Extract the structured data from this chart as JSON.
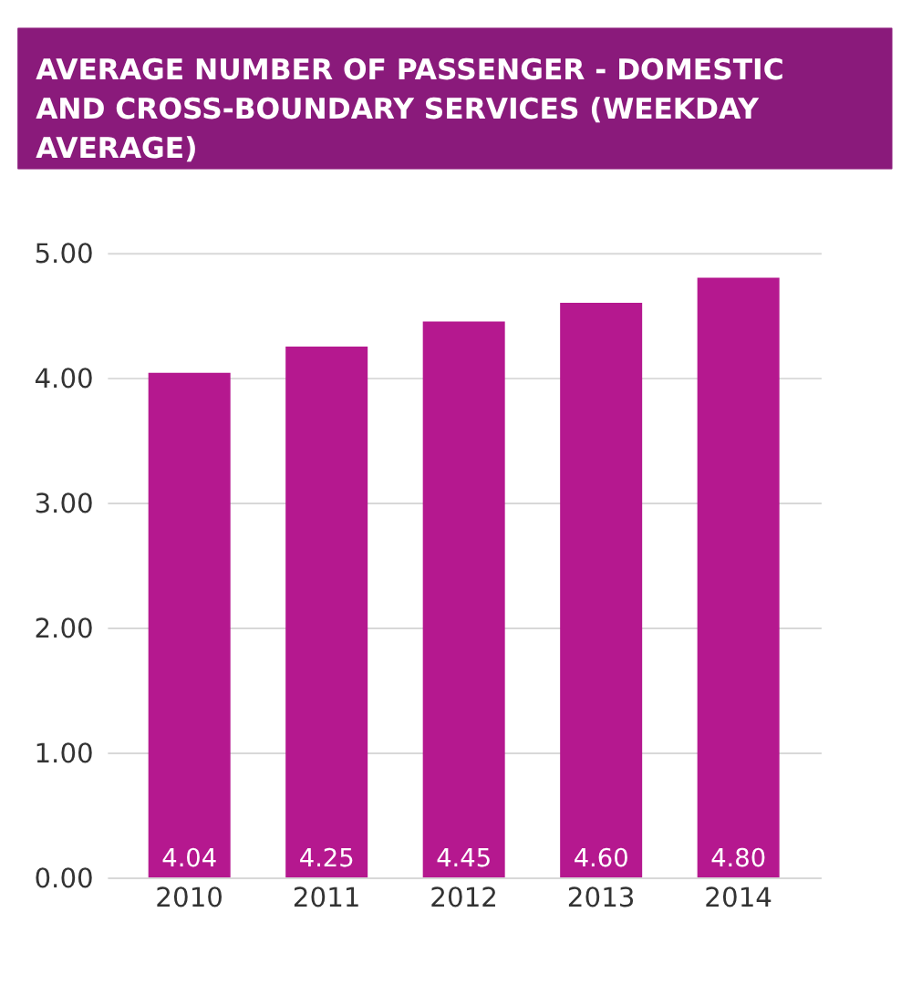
{
  "chart_data": {
    "type": "bar",
    "title": "AVERAGE NUMBER OF PASSENGER - DOMESTIC AND CROSS-BOUNDARY SERVICES (WEEKDAY AVERAGE)",
    "categories": [
      "2010",
      "2011",
      "2012",
      "2013",
      "2014"
    ],
    "values": [
      4.04,
      4.25,
      4.45,
      4.6,
      4.8
    ],
    "value_labels": [
      "4.04",
      "4.25",
      "4.45",
      "4.60",
      "4.80"
    ],
    "color": "#b5188f",
    "ylim": [
      0,
      5
    ],
    "yticks": [
      {
        "value": 0,
        "label": "0.00"
      },
      {
        "value": 1,
        "label": "1.00"
      },
      {
        "value": 2,
        "label": "2.00"
      },
      {
        "value": 3,
        "label": "3.00"
      },
      {
        "value": 4,
        "label": "4.00"
      },
      {
        "value": 5,
        "label": "5.00"
      }
    ],
    "grid": "y"
  }
}
